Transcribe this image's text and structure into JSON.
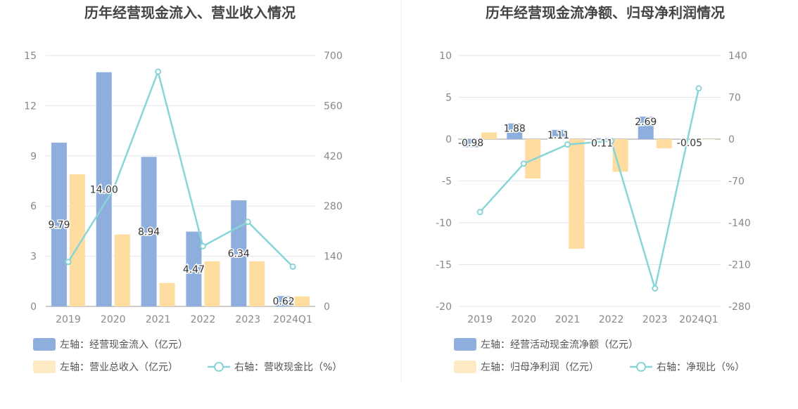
{
  "colors": {
    "bar_primary": "#8eaedd",
    "bar_secondary": "#ffdca0",
    "line": "#88d5d8",
    "grid": "#e3e6f0",
    "axis": "#999999"
  },
  "chart_data": [
    {
      "type": "bar",
      "title": "历年经营现金流入、营业收入情况",
      "categories": [
        "2019",
        "2020",
        "2021",
        "2022",
        "2023",
        "2024Q1"
      ],
      "ylim_left": [
        0,
        15
      ],
      "yticks_left": [
        "15",
        "12",
        "9",
        "6",
        "3",
        "0"
      ],
      "ylim_right": [
        0,
        700
      ],
      "yticks_right": [
        "700",
        "560",
        "420",
        "280",
        "140",
        "0"
      ],
      "grid": true,
      "legend_position": "bottom-left",
      "series": [
        {
          "name": "左轴：经营现金流入（亿元）",
          "axis": "left",
          "kind": "bar",
          "color_key": "bar_primary",
          "values": [
            9.79,
            14.0,
            8.94,
            4.47,
            6.34,
            0.62
          ],
          "labels": [
            "9.79",
            "14.00",
            "8.94",
            "4.47",
            "6.34",
            "0.62"
          ]
        },
        {
          "name": "左轴：营业总收入（亿元）",
          "axis": "left",
          "kind": "bar",
          "color_key": "bar_secondary",
          "values": [
            7.9,
            4.3,
            1.4,
            2.7,
            2.7,
            0.6
          ]
        },
        {
          "name": "右轴：营收现金比（%）",
          "axis": "right",
          "kind": "line",
          "color_key": "line",
          "values": [
            124,
            325,
            655,
            168,
            236,
            111
          ]
        }
      ]
    },
    {
      "type": "bar",
      "title": "历年经营现金流净额、归母净利润情况",
      "categories": [
        "2019",
        "2020",
        "2021",
        "2022",
        "2023",
        "2024Q1"
      ],
      "ylim_left": [
        -20,
        10
      ],
      "yticks_left": [
        "10",
        "5",
        "0",
        "-5",
        "-10",
        "-15",
        "-20"
      ],
      "ylim_right": [
        -280,
        140
      ],
      "yticks_right": [
        "140",
        "70",
        "0",
        "-70",
        "-140",
        "-210",
        "-280"
      ],
      "grid": true,
      "legend_position": "bottom-left",
      "series": [
        {
          "name": "左轴：经营活动现金流净额（亿元）",
          "axis": "left",
          "kind": "bar",
          "color_key": "bar_primary",
          "values": [
            -0.98,
            1.88,
            1.11,
            0.11,
            2.69,
            -0.05
          ],
          "labels": [
            "-0.98",
            "1.88",
            "1.11",
            "0.11",
            "2.69",
            "-0.05"
          ]
        },
        {
          "name": "左轴：归母净利润（亿元）",
          "axis": "left",
          "kind": "bar",
          "color_key": "bar_secondary",
          "values": [
            0.8,
            -4.7,
            -13.1,
            -3.9,
            -1.1,
            0.0
          ]
        },
        {
          "name": "右轴：净现比（%）",
          "axis": "right",
          "kind": "line",
          "color_key": "line",
          "values": [
            -122,
            -41,
            -9,
            -3,
            -250,
            85
          ]
        }
      ]
    }
  ]
}
